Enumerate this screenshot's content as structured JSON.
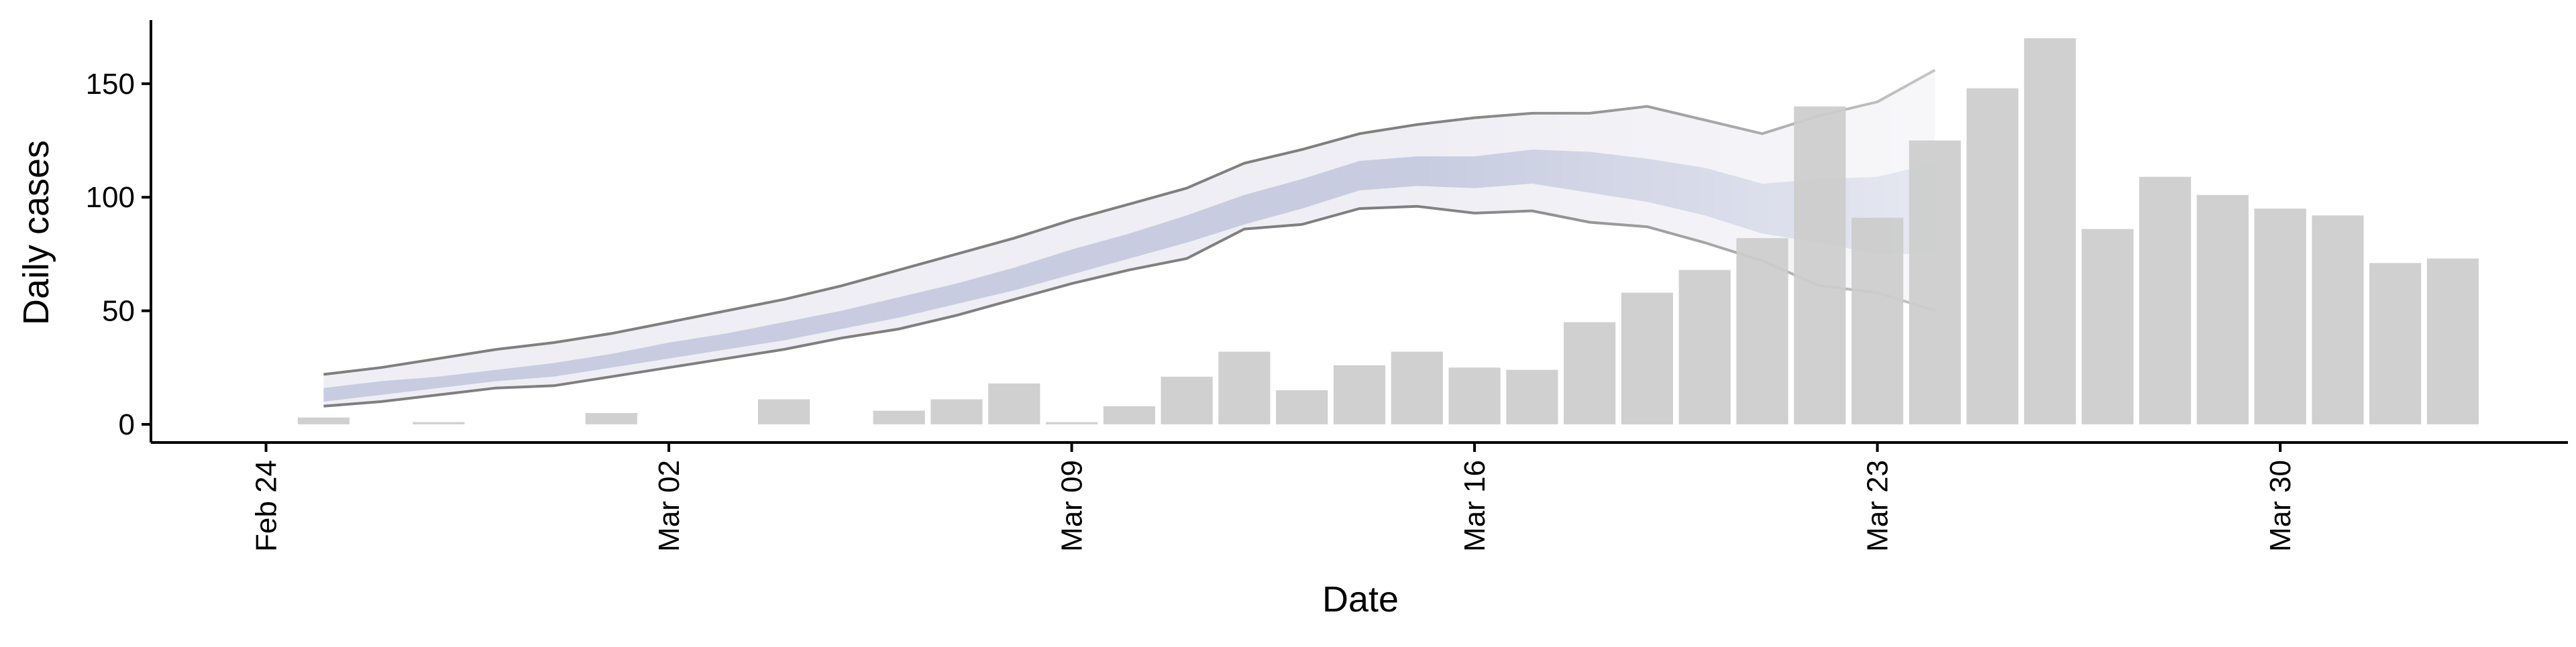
{
  "chart_data": {
    "type": "bar",
    "xlabel": "Date",
    "ylabel": "Daily cases",
    "x_tick_labels": [
      {
        "label": "Feb 24",
        "date": "2020-02-24"
      },
      {
        "label": "Mar 02",
        "date": "2020-03-02"
      },
      {
        "label": "Mar 09",
        "date": "2020-03-09"
      },
      {
        "label": "Mar 16",
        "date": "2020-03-16"
      },
      {
        "label": "Mar 23",
        "date": "2020-03-23"
      },
      {
        "label": "Mar 30",
        "date": "2020-03-30"
      }
    ],
    "y_ticks": [
      0,
      50,
      100,
      150
    ],
    "ylim": [
      -8,
      178
    ],
    "xlim": [
      "2020-02-22",
      "2020-04-04"
    ],
    "grid": false,
    "colors": {
      "bars": "#cccccc",
      "ribbon_outer": "#eeeef4",
      "ribbon_inner": "#c7cce0",
      "bound_lines": "#7f7f7f"
    },
    "bars": [
      {
        "date": "2020-02-25",
        "value": 3
      },
      {
        "date": "2020-02-27",
        "value": 1
      },
      {
        "date": "2020-03-01",
        "value": 5
      },
      {
        "date": "2020-03-04",
        "value": 11
      },
      {
        "date": "2020-03-06",
        "value": 6
      },
      {
        "date": "2020-03-07",
        "value": 11
      },
      {
        "date": "2020-03-08",
        "value": 18
      },
      {
        "date": "2020-03-09",
        "value": 1
      },
      {
        "date": "2020-03-10",
        "value": 8
      },
      {
        "date": "2020-03-11",
        "value": 21
      },
      {
        "date": "2020-03-12",
        "value": 32
      },
      {
        "date": "2020-03-13",
        "value": 15
      },
      {
        "date": "2020-03-14",
        "value": 26
      },
      {
        "date": "2020-03-15",
        "value": 32
      },
      {
        "date": "2020-03-16",
        "value": 25
      },
      {
        "date": "2020-03-17",
        "value": 24
      },
      {
        "date": "2020-03-18",
        "value": 45
      },
      {
        "date": "2020-03-19",
        "value": 58
      },
      {
        "date": "2020-03-20",
        "value": 68
      },
      {
        "date": "2020-03-21",
        "value": 82
      },
      {
        "date": "2020-03-22",
        "value": 140
      },
      {
        "date": "2020-03-23",
        "value": 91
      },
      {
        "date": "2020-03-24",
        "value": 125
      },
      {
        "date": "2020-03-25",
        "value": 148
      },
      {
        "date": "2020-03-26",
        "value": 170
      },
      {
        "date": "2020-03-27",
        "value": 86
      },
      {
        "date": "2020-03-28",
        "value": 109
      },
      {
        "date": "2020-03-29",
        "value": 101
      },
      {
        "date": "2020-03-30",
        "value": 95
      },
      {
        "date": "2020-03-31",
        "value": 92
      },
      {
        "date": "2020-04-01",
        "value": 71
      },
      {
        "date": "2020-04-02",
        "value": 73
      }
    ],
    "ribbon": [
      {
        "date": "2020-02-25",
        "lower": 8,
        "inner_lower": 10,
        "inner_upper": 16,
        "upper": 22
      },
      {
        "date": "2020-02-26",
        "lower": 10,
        "inner_lower": 13,
        "inner_upper": 19,
        "upper": 25
      },
      {
        "date": "2020-02-27",
        "lower": 13,
        "inner_lower": 16,
        "inner_upper": 21,
        "upper": 29
      },
      {
        "date": "2020-02-28",
        "lower": 16,
        "inner_lower": 19,
        "inner_upper": 24,
        "upper": 33
      },
      {
        "date": "2020-02-29",
        "lower": 17,
        "inner_lower": 21,
        "inner_upper": 27,
        "upper": 36
      },
      {
        "date": "2020-03-01",
        "lower": 21,
        "inner_lower": 25,
        "inner_upper": 31,
        "upper": 40
      },
      {
        "date": "2020-03-02",
        "lower": 25,
        "inner_lower": 29,
        "inner_upper": 36,
        "upper": 45
      },
      {
        "date": "2020-03-03",
        "lower": 29,
        "inner_lower": 33,
        "inner_upper": 40,
        "upper": 50
      },
      {
        "date": "2020-03-04",
        "lower": 33,
        "inner_lower": 37,
        "inner_upper": 45,
        "upper": 55
      },
      {
        "date": "2020-03-05",
        "lower": 38,
        "inner_lower": 42,
        "inner_upper": 50,
        "upper": 61
      },
      {
        "date": "2020-03-06",
        "lower": 42,
        "inner_lower": 47,
        "inner_upper": 56,
        "upper": 68
      },
      {
        "date": "2020-03-07",
        "lower": 48,
        "inner_lower": 53,
        "inner_upper": 62,
        "upper": 75
      },
      {
        "date": "2020-03-08",
        "lower": 55,
        "inner_lower": 59,
        "inner_upper": 69,
        "upper": 82
      },
      {
        "date": "2020-03-09",
        "lower": 62,
        "inner_lower": 66,
        "inner_upper": 77,
        "upper": 90
      },
      {
        "date": "2020-03-10",
        "lower": 68,
        "inner_lower": 73,
        "inner_upper": 84,
        "upper": 97
      },
      {
        "date": "2020-03-11",
        "lower": 73,
        "inner_lower": 80,
        "inner_upper": 92,
        "upper": 104
      },
      {
        "date": "2020-03-12",
        "lower": 86,
        "inner_lower": 88,
        "inner_upper": 101,
        "upper": 115
      },
      {
        "date": "2020-03-13",
        "lower": 88,
        "inner_lower": 95,
        "inner_upper": 108,
        "upper": 121
      },
      {
        "date": "2020-03-14",
        "lower": 95,
        "inner_lower": 103,
        "inner_upper": 116,
        "upper": 128
      },
      {
        "date": "2020-03-15",
        "lower": 96,
        "inner_lower": 105,
        "inner_upper": 118,
        "upper": 132
      },
      {
        "date": "2020-03-16",
        "lower": 93,
        "inner_lower": 104,
        "inner_upper": 118,
        "upper": 135
      },
      {
        "date": "2020-03-17",
        "lower": 94,
        "inner_lower": 106,
        "inner_upper": 121,
        "upper": 137
      },
      {
        "date": "2020-03-18",
        "lower": 89,
        "inner_lower": 102,
        "inner_upper": 120,
        "upper": 137
      },
      {
        "date": "2020-03-19",
        "lower": 87,
        "inner_lower": 98,
        "inner_upper": 117,
        "upper": 140
      },
      {
        "date": "2020-03-20",
        "lower": 80,
        "inner_lower": 92,
        "inner_upper": 113,
        "upper": 134
      },
      {
        "date": "2020-03-21",
        "lower": 72,
        "inner_lower": 84,
        "inner_upper": 106,
        "upper": 128
      },
      {
        "date": "2020-03-22",
        "lower": 61,
        "inner_lower": 80,
        "inner_upper": 108,
        "upper": 136
      },
      {
        "date": "2020-03-23",
        "lower": 58,
        "inner_lower": 75,
        "inner_upper": 109,
        "upper": 142
      },
      {
        "date": "2020-03-24",
        "lower": 50,
        "inner_lower": 75,
        "inner_upper": 115,
        "upper": 156
      }
    ]
  }
}
